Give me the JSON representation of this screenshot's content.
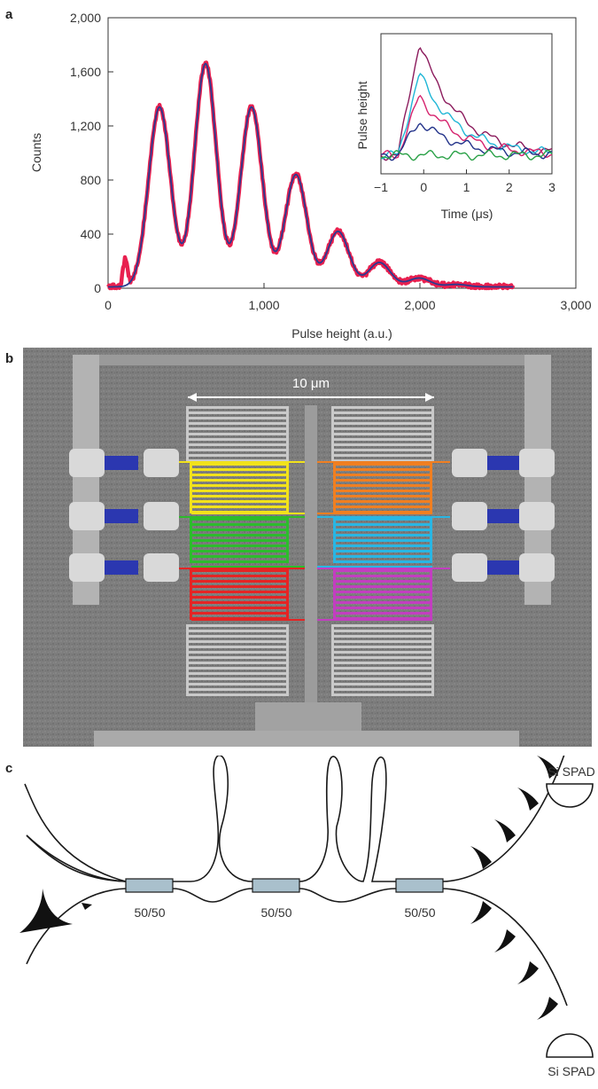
{
  "panels": {
    "a": "a",
    "b": "b",
    "c": "c"
  },
  "chart_data": [
    {
      "type": "scatter",
      "xlabel": "Pulse height (a.u.)",
      "ylabel": "Counts",
      "xlim": [
        0,
        3000
      ],
      "ylim": [
        0,
        2000
      ],
      "xticks": [
        "0",
        "1,000",
        "2,000",
        "3,000"
      ],
      "yticks": [
        "0",
        "400",
        "800",
        "1,200",
        "1,600",
        "2,000"
      ],
      "colors": {
        "data": "#e8204f",
        "fit": "#2b3a8f"
      },
      "peaks": [
        {
          "x": 330,
          "y": 1330
        },
        {
          "x": 625,
          "y": 1650
        },
        {
          "x": 920,
          "y": 1330
        },
        {
          "x": 1205,
          "y": 830
        },
        {
          "x": 1475,
          "y": 410
        },
        {
          "x": 1740,
          "y": 180
        },
        {
          "x": 1995,
          "y": 65
        },
        {
          "x": 2235,
          "y": 18
        }
      ],
      "spur": {
        "x": 110,
        "y": 200
      }
    },
    {
      "type": "line",
      "xlabel": "Time (μs)",
      "ylabel": "Pulse height",
      "xlim": [
        -1,
        3
      ],
      "xticks": [
        "−1",
        "0",
        "1",
        "2",
        "3"
      ],
      "series": [
        {
          "color": "#8b1a5c",
          "amplitude": 1.0
        },
        {
          "color": "#1fb6d6",
          "amplitude": 0.72
        },
        {
          "color": "#d6246e",
          "amplitude": 0.52
        },
        {
          "color": "#23338a",
          "amplitude": 0.3
        },
        {
          "color": "#2aa147",
          "amplitude": 0.0
        }
      ]
    }
  ],
  "figure_b": {
    "scale_label": "10 μm",
    "colors": {
      "yellow": "#f2e21b",
      "green": "#2dbb2d",
      "red": "#e52424",
      "orange": "#f07f21",
      "cyan": "#29b6e3",
      "magenta": "#c23ec0",
      "blue": "#2b37b0"
    }
  },
  "figure_c": {
    "splitters": [
      "50/50",
      "50/50",
      "50/50"
    ],
    "detectors": [
      "Si SPAD",
      "Si SPAD"
    ]
  }
}
